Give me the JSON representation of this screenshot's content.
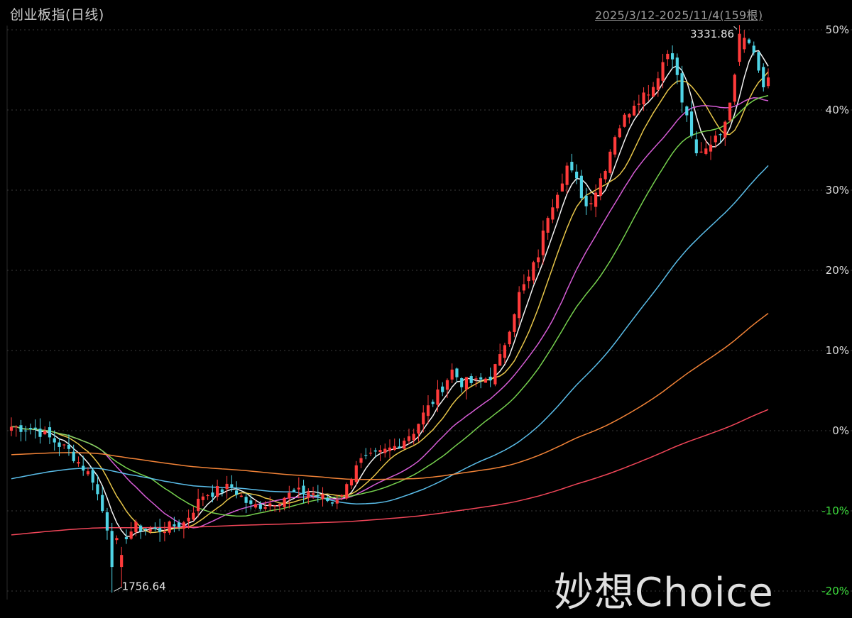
{
  "chart_data": {
    "type": "candlestick",
    "title": "创业板指(日线)",
    "date_range": "2025/3/12-2025/11/4(159根)",
    "watermark": "妙想Choice",
    "y_axis": {
      "unit": "%",
      "ticks": [
        "50%",
        "40%",
        "30%",
        "20%",
        "10%",
        "0%",
        "-10%",
        "-20%"
      ],
      "tick_values": [
        50,
        40,
        30,
        20,
        10,
        0,
        -10,
        -20
      ],
      "range": [
        -20,
        52
      ],
      "position": "right"
    },
    "bar_count": 159,
    "annotations": [
      {
        "label": "3331.86",
        "type": "high"
      },
      {
        "label": "1756.64",
        "type": "low"
      }
    ],
    "colors": {
      "background": "#000000",
      "up": "#ff3b3b",
      "down": "#4fd4e6",
      "grid": "#3a3a3a",
      "tick_positive": "#d9d9d9",
      "tick_negative": "#3cdc3c"
    },
    "moving_averages": [
      {
        "color": "#ffffff"
      },
      {
        "color": "#f2d04d"
      },
      {
        "color": "#e061e0"
      },
      {
        "color": "#7cdc52"
      },
      {
        "color": "#5fc7f5"
      },
      {
        "color": "#ff8a3a"
      },
      {
        "color": "#ff4a5e"
      }
    ]
  }
}
